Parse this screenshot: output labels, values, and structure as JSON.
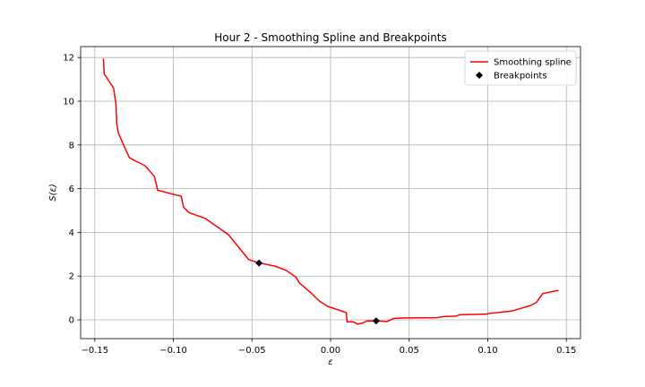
{
  "chart_data": {
    "type": "line",
    "title": "Hour 2 - Smoothing Spline and Breakpoints",
    "xlabel": "ε",
    "ylabel": "S(ε)",
    "xlim": [
      -0.159,
      0.159
    ],
    "ylim": [
      -0.86,
      12.5
    ],
    "xticks": [
      -0.15,
      -0.1,
      -0.05,
      0.0,
      0.05,
      0.1,
      0.15
    ],
    "xtick_labels": [
      "−0.15",
      "−0.10",
      "−0.05",
      "0.00",
      "0.05",
      "0.10",
      "0.15"
    ],
    "yticks": [
      0,
      2,
      4,
      6,
      8,
      10,
      12
    ],
    "ytick_labels": [
      "0",
      "2",
      "4",
      "6",
      "8",
      "10",
      "12"
    ],
    "grid": true,
    "legend_position": "top-right",
    "series": [
      {
        "name": "Smoothing spline",
        "kind": "line",
        "color": "#ff0000",
        "x": [
          -0.1445,
          -0.144,
          -0.138,
          -0.1365,
          -0.136,
          -0.135,
          -0.132,
          -0.128,
          -0.125,
          -0.118,
          -0.112,
          -0.11,
          -0.095,
          -0.0935,
          -0.09,
          -0.08,
          -0.065,
          -0.052,
          -0.045,
          -0.035,
          -0.028,
          -0.022,
          -0.02,
          -0.012,
          -0.007,
          -0.002,
          0.01,
          0.0105,
          0.0115,
          0.015,
          0.017,
          0.02,
          0.023,
          0.03,
          0.036,
          0.04,
          0.048,
          0.068,
          0.072,
          0.08,
          0.082,
          0.099,
          0.102,
          0.115,
          0.12,
          0.127,
          0.131,
          0.135,
          0.145
        ],
        "y": [
          11.95,
          11.25,
          10.6,
          9.85,
          8.97,
          8.55,
          8.05,
          7.42,
          7.3,
          7.05,
          6.55,
          5.93,
          5.65,
          5.15,
          4.9,
          4.65,
          3.9,
          2.75,
          2.6,
          2.45,
          2.25,
          1.95,
          1.7,
          1.2,
          0.85,
          0.62,
          0.33,
          -0.1,
          -0.08,
          -0.1,
          -0.2,
          -0.16,
          -0.05,
          -0.05,
          -0.08,
          0.06,
          0.09,
          0.1,
          0.15,
          0.17,
          0.23,
          0.26,
          0.3,
          0.4,
          0.5,
          0.65,
          0.8,
          1.2,
          1.35
        ]
      },
      {
        "name": "Breakpoints",
        "kind": "scatter",
        "marker": "D",
        "color": "#000000",
        "x": [
          -0.0455,
          0.029
        ],
        "y": [
          2.6,
          -0.05
        ]
      }
    ]
  }
}
